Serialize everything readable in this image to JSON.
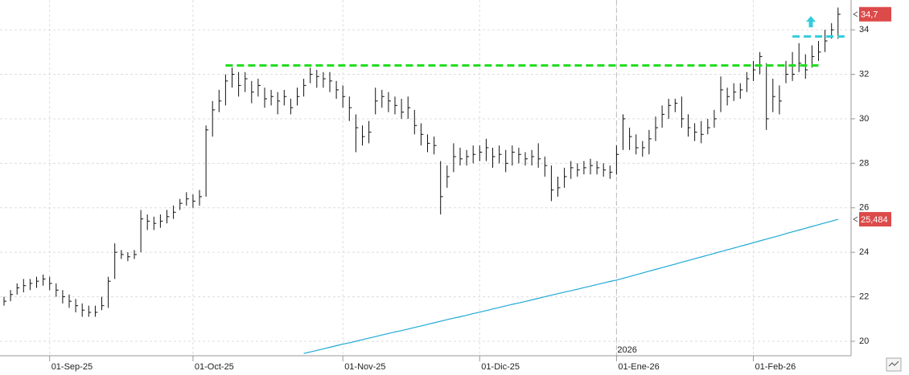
{
  "chart_data": {
    "type": "ohlc",
    "categories": [
      null,
      null,
      null,
      null,
      null,
      null,
      null,
      "01-Sep-25",
      null,
      null,
      null,
      null,
      null,
      null,
      null,
      null,
      null,
      null,
      null,
      null,
      null,
      null,
      null,
      null,
      null,
      null,
      null,
      null,
      null,
      "01-Oct-25",
      null,
      null,
      null,
      null,
      null,
      null,
      null,
      null,
      null,
      null,
      null,
      null,
      null,
      null,
      null,
      null,
      null,
      null,
      null,
      null,
      null,
      null,
      "01-Nov-25",
      null,
      null,
      null,
      null,
      null,
      null,
      null,
      null,
      null,
      null,
      null,
      null,
      null,
      null,
      null,
      null,
      null,
      null,
      null,
      null,
      "01-Dic-25",
      null,
      null,
      null,
      null,
      null,
      null,
      null,
      null,
      null,
      null,
      null,
      null,
      null,
      null,
      null,
      null,
      null,
      null,
      null,
      null,
      "01-Ene-26",
      null,
      null,
      null,
      null,
      null,
      null,
      null,
      null,
      null,
      null,
      null,
      null,
      null,
      null,
      null,
      null,
      null,
      null,
      null,
      null,
      "01-Feb-26",
      null,
      null,
      null,
      null,
      null,
      null,
      null,
      null,
      null,
      null,
      null,
      null,
      null
    ],
    "high": [
      22.0,
      22.3,
      22.6,
      22.8,
      22.8,
      22.9,
      23.0,
      22.9,
      22.6,
      22.3,
      22.1,
      21.9,
      21.7,
      21.6,
      21.6,
      22.0,
      22.9,
      24.4,
      24.1,
      24.0,
      24.1,
      25.9,
      25.7,
      25.6,
      25.7,
      25.9,
      26.1,
      26.4,
      26.7,
      26.6,
      26.8,
      29.7,
      30.8,
      31.3,
      32.0,
      32.3,
      32.1,
      32.1,
      31.7,
      31.8,
      31.4,
      31.3,
      31.2,
      31.3,
      30.9,
      31.4,
      31.8,
      32.3,
      32.2,
      32.1,
      32.1,
      31.7,
      31.5,
      31.0,
      30.2,
      29.7,
      29.9,
      31.4,
      31.3,
      31.2,
      31.0,
      30.9,
      31.0,
      30.4,
      29.8,
      29.3,
      29.2,
      28.1,
      27.9,
      28.9,
      28.7,
      28.6,
      28.8,
      28.8,
      29.1,
      28.7,
      28.8,
      28.6,
      28.8,
      28.7,
      28.5,
      28.6,
      28.9,
      28.3,
      27.9,
      27.4,
      27.8,
      28.1,
      28.0,
      28.1,
      28.2,
      28.1,
      28.0,
      27.9,
      28.8,
      30.2,
      29.6,
      29.3,
      29.0,
      29.5,
      30.1,
      30.6,
      30.9,
      30.9,
      31.0,
      30.2,
      29.8,
      29.9,
      30.0,
      30.4,
      31.9,
      31.4,
      31.6,
      31.6,
      32.1,
      32.6,
      33.0,
      32.5,
      31.8,
      31.5,
      32.6,
      33.0,
      33.4,
      32.9,
      33.3,
      33.5,
      34.0,
      34.3,
      35.0
    ],
    "low": [
      21.6,
      21.8,
      22.1,
      22.2,
      22.3,
      22.4,
      22.5,
      22.3,
      22.0,
      21.7,
      21.5,
      21.3,
      21.1,
      21.1,
      21.1,
      21.4,
      21.5,
      22.8,
      23.7,
      23.6,
      23.7,
      24.0,
      25.0,
      25.0,
      25.1,
      25.3,
      25.5,
      25.9,
      26.1,
      26.0,
      26.1,
      26.5,
      29.2,
      30.3,
      30.6,
      31.4,
      31.0,
      31.2,
      30.7,
      31.0,
      30.5,
      30.6,
      30.2,
      30.6,
      30.2,
      30.6,
      31.0,
      31.6,
      31.4,
      31.4,
      31.2,
      30.9,
      30.5,
      29.9,
      28.5,
      28.8,
      28.9,
      30.2,
      30.5,
      30.3,
      30.2,
      30.0,
      30.0,
      29.3,
      28.8,
      28.5,
      28.4,
      25.7,
      26.9,
      27.6,
      27.9,
      27.9,
      28.0,
      28.1,
      28.1,
      27.8,
      28.0,
      27.6,
      27.9,
      28.0,
      27.9,
      27.9,
      27.8,
      27.4,
      26.3,
      26.5,
      26.9,
      27.3,
      27.4,
      27.5,
      27.5,
      27.5,
      27.4,
      27.3,
      27.5,
      28.6,
      28.6,
      28.4,
      28.3,
      28.4,
      29.0,
      29.6,
      30.0,
      30.3,
      29.6,
      29.2,
      29.0,
      28.9,
      29.3,
      29.6,
      30.3,
      30.6,
      30.8,
      30.9,
      31.2,
      31.7,
      32.0,
      29.5,
      30.3,
      30.2,
      31.6,
      31.7,
      32.1,
      31.8,
      32.3,
      32.6,
      33.0,
      33.6,
      33.6
    ],
    "close": [
      21.8,
      22.1,
      22.4,
      22.5,
      22.6,
      22.7,
      22.8,
      22.6,
      22.3,
      22.0,
      21.8,
      21.6,
      21.4,
      21.3,
      21.3,
      21.6,
      22.7,
      24.0,
      23.9,
      23.8,
      23.9,
      25.5,
      25.4,
      25.3,
      25.4,
      25.6,
      25.8,
      26.2,
      26.4,
      26.3,
      26.5,
      29.5,
      30.4,
      30.8,
      31.7,
      32.0,
      31.5,
      31.8,
      31.2,
      31.5,
      30.9,
      31.0,
      30.8,
      31.0,
      30.5,
      31.0,
      31.5,
      32.0,
      31.9,
      31.8,
      31.7,
      31.3,
      31.0,
      30.5,
      29.6,
      29.2,
      29.4,
      30.8,
      31.0,
      30.8,
      30.6,
      30.3,
      30.5,
      29.7,
      29.3,
      28.9,
      28.8,
      26.5,
      27.4,
      28.3,
      28.2,
      28.3,
      28.4,
      28.5,
      28.7,
      28.3,
      28.4,
      28.0,
      28.5,
      28.4,
      28.2,
      28.3,
      28.2,
      27.9,
      26.8,
      26.9,
      27.4,
      27.8,
      27.7,
      27.8,
      27.9,
      27.8,
      27.7,
      27.6,
      28.4,
      30.0,
      29.2,
      28.7,
      28.7,
      29.1,
      29.6,
      30.2,
      30.6,
      30.7,
      30.0,
      29.6,
      29.4,
      29.3,
      29.6,
      30.0,
      31.3,
      31.0,
      31.2,
      31.3,
      31.8,
      32.2,
      32.8,
      30.0,
      31.0,
      30.8,
      32.0,
      32.0,
      32.5,
      32.2,
      32.8,
      33.0,
      33.5,
      34.0,
      34.7
    ],
    "bar_color": "#111111",
    "ma": {
      "color": "#1fa9d6",
      "values": [
        null,
        null,
        null,
        null,
        null,
        null,
        null,
        null,
        null,
        null,
        null,
        null,
        null,
        null,
        null,
        null,
        null,
        null,
        null,
        null,
        null,
        null,
        null,
        null,
        null,
        null,
        null,
        null,
        null,
        null,
        null,
        null,
        null,
        null,
        null,
        null,
        null,
        null,
        null,
        null,
        null,
        null,
        null,
        null,
        null,
        null,
        19.45,
        19.52,
        19.59,
        19.66,
        19.73,
        19.8,
        19.87,
        19.93,
        20.0,
        20.07,
        20.14,
        20.21,
        20.28,
        20.35,
        20.42,
        20.48,
        20.55,
        20.62,
        20.69,
        20.76,
        20.83,
        20.9,
        20.97,
        21.04,
        21.1,
        21.17,
        21.24,
        21.31,
        21.38,
        21.45,
        21.52,
        21.59,
        21.66,
        21.72,
        21.79,
        21.86,
        21.93,
        22.0,
        22.07,
        22.14,
        22.21,
        22.27,
        22.34,
        22.41,
        22.48,
        22.55,
        22.62,
        22.69,
        22.75,
        22.83,
        22.91,
        22.99,
        23.07,
        23.15,
        23.23,
        23.31,
        23.39,
        23.47,
        23.55,
        23.63,
        23.71,
        23.79,
        23.87,
        23.95,
        24.03,
        24.11,
        24.19,
        24.27,
        24.35,
        24.43,
        24.51,
        24.59,
        24.67,
        24.75,
        24.84,
        24.92,
        25.0,
        25.08,
        25.16,
        25.24,
        25.32,
        25.4,
        25.484
      ]
    },
    "levels": [
      {
        "value": 32.4,
        "color": "#22dd22",
        "start": 34,
        "end": 125
      },
      {
        "value": 33.7,
        "color": "#33ccdd",
        "start": 121,
        "end": 129
      }
    ],
    "price_labels": [
      {
        "label": "34,7",
        "value": 34.7
      },
      {
        "label": "25,484",
        "value": 25.484
      }
    ],
    "label_color": "#dc4a4a",
    "annotations": [
      {
        "text": "2026",
        "x": 94
      }
    ],
    "ylim": [
      19.35,
      35.34
    ],
    "yticks": [
      20,
      22,
      24,
      26,
      28,
      30,
      32,
      34
    ],
    "grid": true
  }
}
